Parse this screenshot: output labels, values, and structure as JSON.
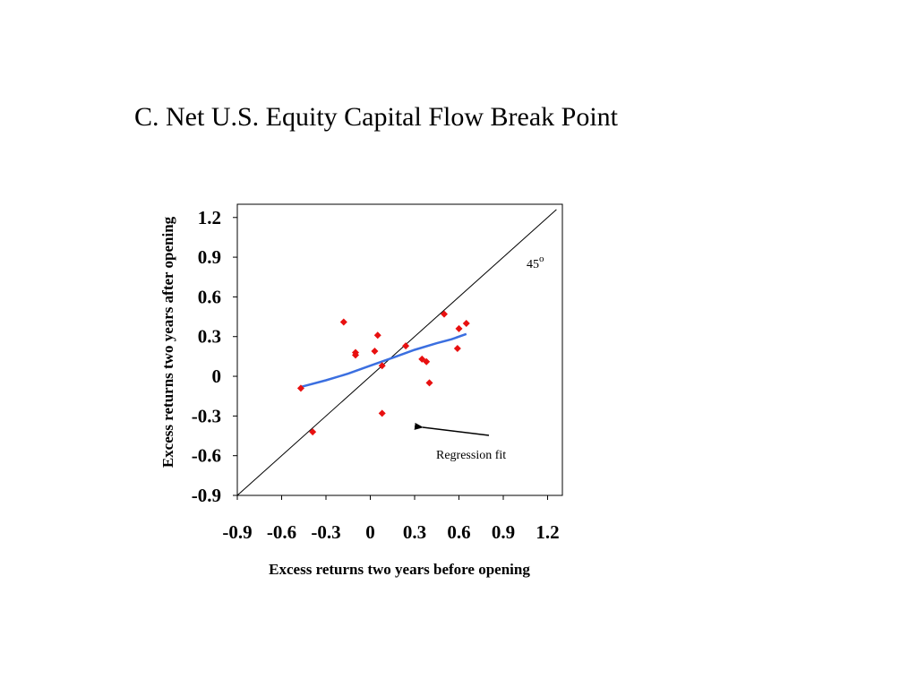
{
  "slide": {
    "title": "C. Net U.S. Equity Capital Flow Break Point"
  },
  "chart_data": {
    "type": "scatter",
    "title": "",
    "xlabel": "Excess returns two years before opening",
    "ylabel": "Excess returns two years after opening",
    "xlim": [
      -0.9,
      1.3
    ],
    "ylim": [
      -0.9,
      1.3
    ],
    "x_ticks": [
      "-0.9",
      "-0.6",
      "-0.3",
      "0",
      "0.3",
      "0.6",
      "0.9",
      "1.2"
    ],
    "y_ticks": [
      "1.2",
      "0.9",
      "0.6",
      "0.3",
      "0",
      "-0.3",
      "-0.6",
      "-0.9"
    ],
    "grid": false,
    "legend": "none",
    "series": [
      {
        "kind": "scatter",
        "color": "#e81010",
        "marker": "diamond",
        "points": [
          [
            -0.47,
            -0.09
          ],
          [
            -0.39,
            -0.42
          ],
          [
            -0.18,
            0.41
          ],
          [
            -0.1,
            0.18
          ],
          [
            -0.1,
            0.16
          ],
          [
            0.03,
            0.19
          ],
          [
            0.05,
            0.31
          ],
          [
            0.08,
            0.08
          ],
          [
            0.08,
            -0.28
          ],
          [
            0.24,
            0.23
          ],
          [
            0.35,
            0.13
          ],
          [
            0.38,
            0.11
          ],
          [
            0.4,
            -0.05
          ],
          [
            0.5,
            0.47
          ],
          [
            0.59,
            0.21
          ],
          [
            0.6,
            0.36
          ],
          [
            0.65,
            0.4
          ]
        ]
      },
      {
        "kind": "line",
        "color": "#3b6fe0",
        "points": [
          [
            -0.47,
            -0.08
          ],
          [
            -0.3,
            -0.03
          ],
          [
            -0.15,
            0.02
          ],
          [
            0.0,
            0.08
          ],
          [
            0.15,
            0.14
          ],
          [
            0.3,
            0.2
          ],
          [
            0.45,
            0.25
          ],
          [
            0.55,
            0.28
          ],
          [
            0.65,
            0.32
          ]
        ]
      },
      {
        "kind": "reference-line",
        "color": "#000000",
        "points": [
          [
            -0.9,
            -0.9
          ],
          [
            1.26,
            1.26
          ]
        ]
      }
    ],
    "annotations": {
      "degree_label": "45",
      "degree_symbol": "o",
      "regression_label": "Regression fit"
    }
  }
}
